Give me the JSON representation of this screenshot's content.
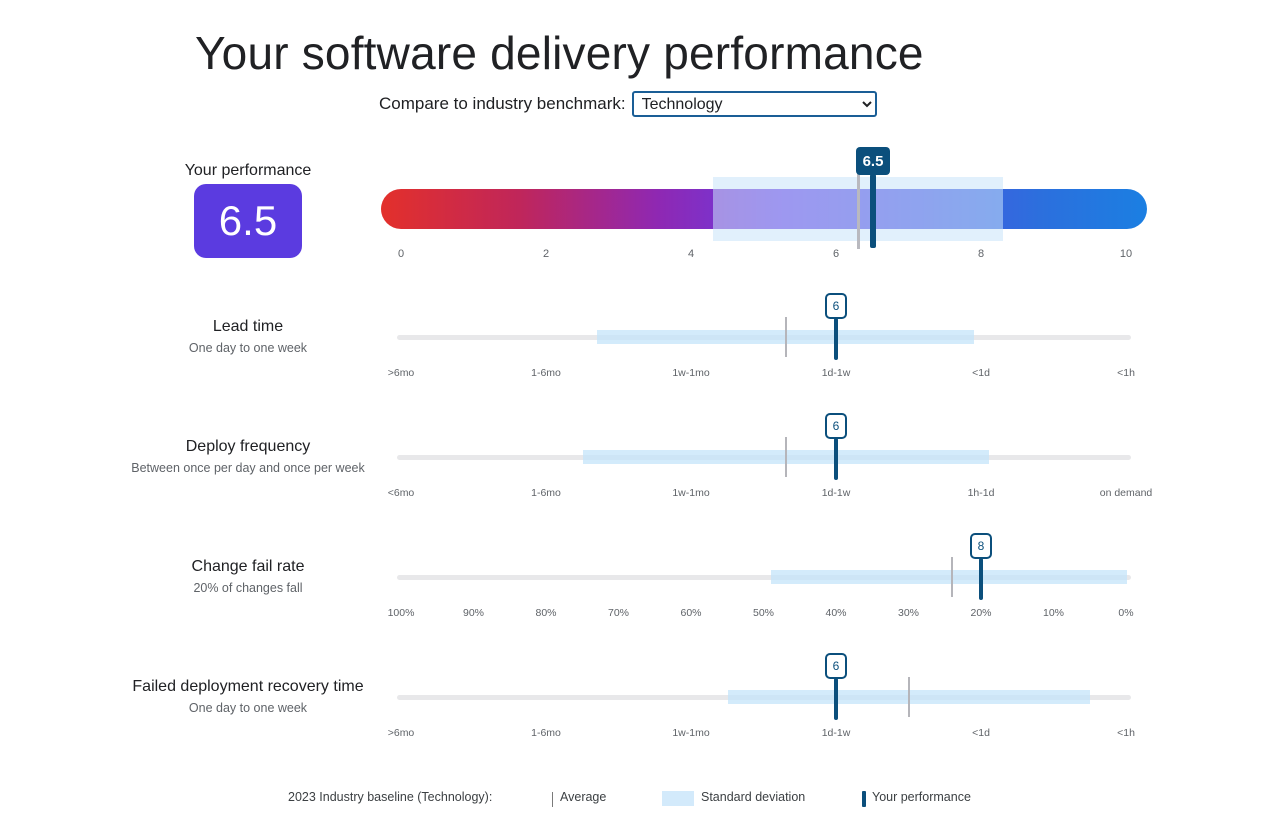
{
  "page_title": "Your software delivery performance",
  "benchmark": {
    "label": "Compare to industry benchmark:",
    "selected": "Technology",
    "options": [
      "Technology"
    ]
  },
  "overall": {
    "label": "Your performance",
    "score": "6.5",
    "flag": "6.5",
    "ticks": [
      "0",
      "2",
      "4",
      "6",
      "8",
      "10"
    ]
  },
  "metrics": [
    {
      "title": "Lead time",
      "subtitle": "One day to one week",
      "score": "6",
      "ticks": [
        ">6mo",
        "1-6mo",
        "1w-1mo",
        "1d-1w",
        "<1d",
        "<1h"
      ]
    },
    {
      "title": "Deploy frequency",
      "subtitle": "Between once per day and once per week",
      "score": "6",
      "ticks": [
        "<6mo",
        "1-6mo",
        "1w-1mo",
        "1d-1w",
        "1h-1d",
        "on demand"
      ]
    },
    {
      "title": "Change fail rate",
      "subtitle": "20% of changes fall",
      "score": "8",
      "ticks": [
        "100%",
        "90%",
        "80%",
        "70%",
        "60%",
        "50%",
        "40%",
        "30%",
        "20%",
        "10%",
        "0%"
      ]
    },
    {
      "title": "Failed deployment recovery time",
      "subtitle": "One day to one week",
      "score": "6",
      "ticks": [
        ">6mo",
        "1-6mo",
        "1w-1mo",
        "1d-1w",
        "<1d",
        "<1h"
      ]
    }
  ],
  "legend": {
    "baseline": "2023 Industry baseline (Technology):",
    "average": "Average",
    "std_dev": "Standard deviation",
    "your_performance": "Your performance"
  },
  "colors": {
    "accent": "#0b4f7c",
    "badge": "#5b3be0",
    "gradient_start": "#e3302b",
    "gradient_end": "#1b7fe2"
  }
}
